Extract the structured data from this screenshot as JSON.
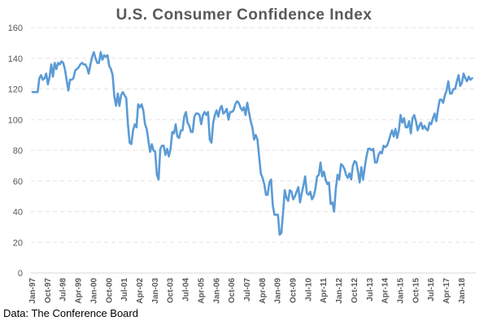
{
  "chart_data": {
    "type": "line",
    "title": "U.S. Consumer Confidence Index",
    "xlabel": "",
    "ylabel": "",
    "ylim": [
      0,
      160
    ],
    "yticks": [
      0,
      20,
      40,
      60,
      80,
      100,
      120,
      140,
      160
    ],
    "grid": true,
    "legend": "none",
    "line_color": "#5B9BD5",
    "x_start": "Jan-97",
    "x_frequency": "monthly",
    "x_tick_labels": [
      "Jan-97",
      "Oct-97",
      "Jul-98",
      "Apr-99",
      "Jan-00",
      "Oct-00",
      "Jul-01",
      "Apr-02",
      "Jan-03",
      "Oct-03",
      "Jul-04",
      "Apr-05",
      "Jan-06",
      "Oct-06",
      "Jul-07",
      "Apr-08",
      "Jan-09",
      "Oct-09",
      "Jul-10",
      "Apr-11",
      "Jan-12",
      "Oct-12",
      "Jul-13",
      "Apr-14",
      "Jan-15",
      "Oct-15",
      "Jul-16",
      "Apr-17",
      "Jan-18"
    ],
    "series": [
      {
        "name": "Consumer Confidence Index",
        "values": [
          118,
          118,
          118,
          118,
          127,
          129,
          126,
          127,
          130,
          123,
          128,
          136,
          128,
          137,
          133,
          137,
          136,
          138,
          137,
          133,
          126,
          119,
          126,
          126,
          127,
          132,
          133,
          134,
          136,
          137,
          136,
          136,
          134,
          130,
          136,
          141,
          144,
          140,
          137,
          137,
          144,
          139,
          142,
          141,
          142,
          135,
          133,
          129,
          115,
          109,
          117,
          109,
          116,
          118,
          116,
          114,
          97,
          85,
          84,
          93,
          97,
          95,
          110,
          108,
          110,
          106,
          97,
          94,
          86,
          79,
          84,
          80,
          79,
          64,
          61,
          81,
          83,
          83,
          77,
          81,
          76,
          81,
          92,
          91,
          97,
          89,
          88,
          93,
          93,
          102,
          105,
          98,
          96,
          92,
          92,
          102,
          104,
          104,
          103,
          97,
          103,
          105,
          103,
          105,
          87,
          85,
          98,
          103,
          106,
          102,
          107,
          109,
          104,
          105,
          107,
          100,
          105,
          105,
          106,
          110,
          112,
          111,
          108,
          106,
          108,
          103,
          111,
          105,
          99,
          95,
          87,
          90,
          87,
          76,
          65,
          62,
          58,
          51,
          51,
          59,
          61,
          44,
          38,
          38,
          38,
          25,
          26,
          39,
          54,
          49,
          47,
          54,
          53,
          48,
          50,
          53,
          56,
          46,
          52,
          57,
          63,
          52,
          51,
          53,
          48,
          50,
          55,
          63,
          64,
          72,
          63,
          66,
          61,
          58,
          59,
          45,
          46,
          40,
          55,
          64,
          61,
          71,
          70,
          68,
          64,
          62,
          65,
          61,
          70,
          73,
          72,
          66,
          59,
          69,
          61,
          69,
          76,
          81,
          81,
          80,
          81,
          72,
          72,
          77,
          79,
          78,
          83,
          82,
          83,
          86,
          90,
          93,
          89,
          94,
          88,
          93,
          103,
          98,
          101,
          95,
          95,
          99,
          91,
          101,
          103,
          99,
          93,
          96,
          98,
          94,
          96,
          94,
          93,
          98,
          97,
          101,
          104,
          99,
          107,
          113,
          113,
          111,
          116,
          119,
          125,
          117,
          117,
          120,
          120,
          125,
          129,
          122,
          124,
          130,
          127,
          125,
          128,
          126,
          127
        ]
      }
    ],
    "source": "Data: The Conference Board"
  }
}
